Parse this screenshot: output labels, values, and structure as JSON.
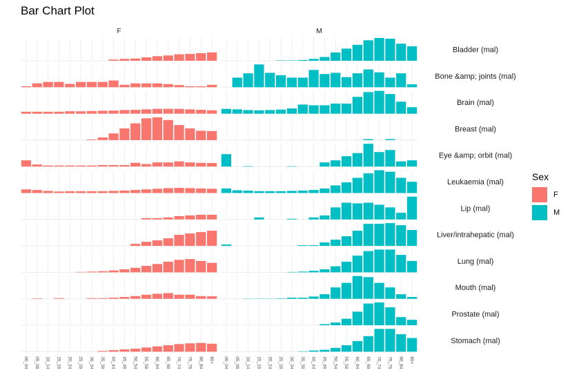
{
  "chart_data": {
    "type": "bar",
    "title": "Bar Chart Plot",
    "xlabel": "",
    "ylabel": "",
    "facet_columns": [
      "F",
      "M"
    ],
    "facet_rows": [
      "Bladder (mal)",
      "Bone &amp; joints (mal)",
      "Brain (mal)",
      "Breast (mal)",
      "Eye &amp; orbit (mal)",
      "Leukaemia (mal)",
      "Lip (mal)",
      "Liver/intrahepatic (mal)",
      "Lung (mal)",
      "Mouth (mal)",
      "Prostate (mal)",
      "Stomach (mal)"
    ],
    "categories": [
      "00_04",
      "05_09",
      "10_14",
      "15_19",
      "20_24",
      "25_29",
      "30_34",
      "35_39",
      "40_44",
      "45_49",
      "50_54",
      "55_59",
      "60_64",
      "65_69",
      "70_74",
      "75_79",
      "80_84",
      "85+"
    ],
    "legend": {
      "title": "Sex",
      "position": "right",
      "entries": [
        {
          "label": "F",
          "color": "#F8766D"
        },
        {
          "label": "M",
          "color": "#00BFC4"
        }
      ]
    },
    "colors": {
      "F": "#F8766D",
      "M": "#00BFC4",
      "grid": "#EBEBEB"
    },
    "free_y_scale": true,
    "grid": true,
    "series": [
      {
        "name": "F",
        "values": [
          [
            0,
            0,
            0,
            0,
            0,
            0,
            0,
            0,
            3,
            5,
            6,
            9,
            12,
            14,
            17,
            18,
            20,
            22
          ],
          [
            4,
            16,
            22,
            22,
            14,
            22,
            22,
            22,
            28,
            10,
            16,
            16,
            16,
            13,
            9,
            4,
            4,
            10
          ],
          [
            8,
            8,
            8,
            8,
            10,
            10,
            11,
            12,
            13,
            15,
            16,
            18,
            20,
            20,
            20,
            18,
            16,
            14
          ],
          [
            0,
            0,
            0,
            0,
            0,
            0,
            2,
            8,
            20,
            35,
            50,
            65,
            68,
            60,
            45,
            35,
            28,
            27
          ],
          [
            30,
            10,
            5,
            5,
            5,
            5,
            5,
            7,
            7,
            7,
            18,
            12,
            20,
            20,
            25,
            20,
            18,
            17
          ],
          [
            12,
            10,
            7,
            5,
            6,
            6,
            6,
            6,
            7,
            8,
            10,
            12,
            14,
            16,
            17,
            16,
            15,
            14
          ],
          [
            0,
            0,
            0,
            0,
            0,
            0,
            0,
            0,
            0,
            0,
            0,
            2,
            2,
            3,
            5,
            6,
            7,
            7
          ],
          [
            0,
            0,
            0,
            0,
            0,
            0,
            0,
            0,
            0,
            0,
            3,
            6,
            8,
            11,
            16,
            18,
            20,
            22
          ],
          [
            0,
            0,
            0,
            0,
            0,
            1,
            2,
            3,
            5,
            8,
            12,
            17,
            22,
            28,
            33,
            35,
            30,
            25
          ],
          [
            0,
            2,
            0,
            3,
            0,
            0,
            3,
            3,
            5,
            8,
            12,
            18,
            22,
            25,
            18,
            18,
            12,
            11
          ],
          [
            0,
            0,
            0,
            0,
            0,
            0,
            0,
            0,
            0,
            0,
            0,
            0,
            0,
            0,
            0,
            0,
            0,
            0
          ],
          [
            0,
            0,
            0,
            0,
            0,
            0,
            0,
            2,
            4,
            6,
            8,
            11,
            14,
            17,
            20,
            22,
            23,
            21
          ]
        ]
      },
      {
        "name": "M",
        "values": [
          [
            0,
            0,
            0,
            0,
            0,
            1,
            1,
            2,
            5,
            10,
            22,
            32,
            42,
            54,
            60,
            58,
            45,
            38
          ],
          [
            0,
            40,
            58,
            95,
            60,
            50,
            40,
            40,
            72,
            55,
            60,
            42,
            58,
            74,
            62,
            40,
            58,
            12
          ],
          [
            20,
            18,
            15,
            14,
            15,
            17,
            22,
            38,
            35,
            35,
            42,
            42,
            70,
            90,
            95,
            82,
            50,
            27
          ],
          [
            0,
            0,
            0,
            0,
            0,
            0,
            0,
            0,
            0,
            0,
            0,
            0,
            0,
            3,
            0,
            3,
            0,
            0
          ],
          [
            60,
            0,
            2,
            0,
            0,
            0,
            2,
            0,
            0,
            20,
            30,
            50,
            65,
            110,
            70,
            80,
            25,
            30
          ],
          [
            15,
            9,
            8,
            6,
            6,
            6,
            7,
            8,
            10,
            15,
            25,
            35,
            50,
            65,
            75,
            70,
            50,
            37
          ],
          [
            0,
            0,
            0,
            3,
            0,
            0,
            1,
            0,
            3,
            6,
            18,
            25,
            24,
            25,
            22,
            18,
            10,
            34
          ],
          [
            2,
            0,
            0,
            0,
            0,
            0,
            0,
            1,
            1,
            5,
            9,
            14,
            22,
            32,
            32,
            33,
            30,
            23
          ],
          [
            0,
            0,
            0,
            0,
            0,
            0,
            1,
            2,
            4,
            8,
            16,
            28,
            44,
            56,
            60,
            60,
            46,
            30
          ],
          [
            0,
            0,
            1,
            1,
            1,
            2,
            5,
            5,
            10,
            20,
            50,
            70,
            100,
            95,
            70,
            50,
            20,
            8
          ],
          [
            0,
            0,
            0,
            0,
            0,
            0,
            0,
            0,
            0,
            2,
            5,
            12,
            25,
            40,
            42,
            33,
            15,
            10
          ],
          [
            0,
            0,
            0,
            0,
            0,
            0,
            0,
            1,
            3,
            5,
            10,
            17,
            28,
            41,
            60,
            60,
            46,
            36
          ]
        ]
      }
    ]
  }
}
